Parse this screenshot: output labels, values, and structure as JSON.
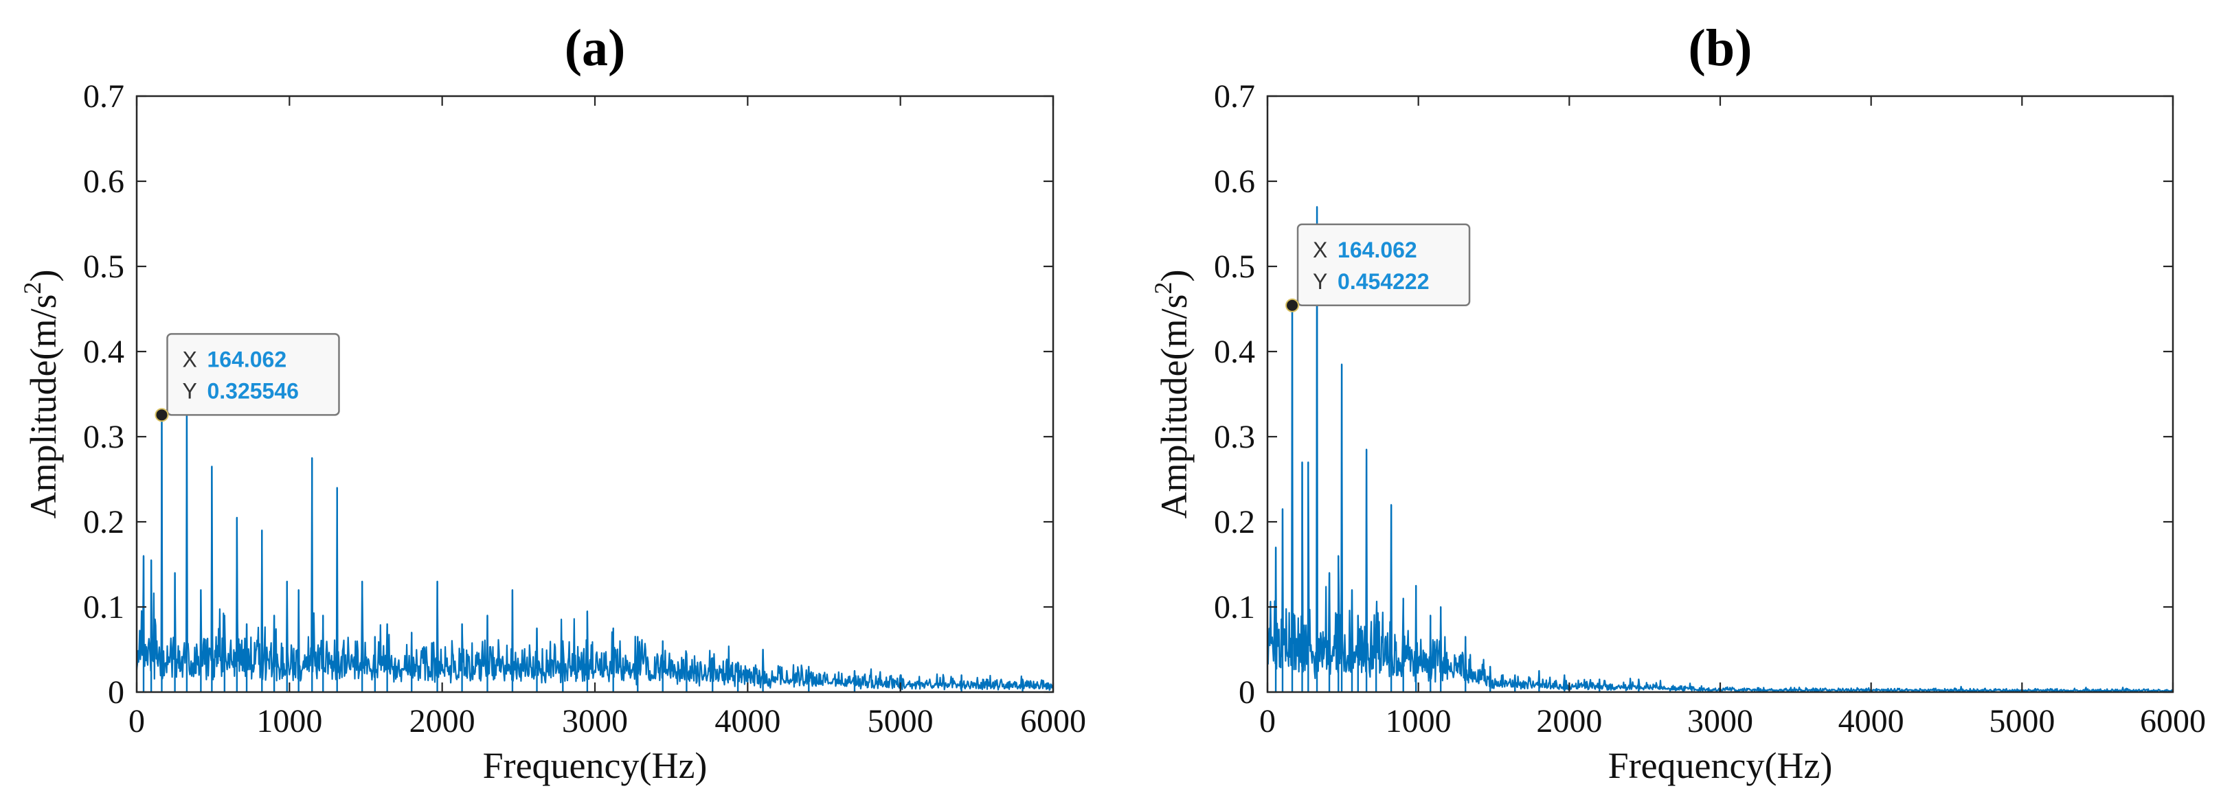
{
  "figure": {
    "panels": [
      "(a)",
      "(b)"
    ]
  },
  "colors": {
    "series": "#0072bd",
    "axis": "#262626",
    "datatip_value": "#1a8fd8",
    "datatip_label": "#333333",
    "datatip_border": "#7a7a7a",
    "datatip_bg": "#f8f8f8",
    "marker": "#1f1f1f"
  },
  "chart_data": [
    {
      "type": "line",
      "panel_label": "(a)",
      "title": "(a)",
      "xlabel": "Frequency(Hz)",
      "ylabel": "Amplitude(m/s2)",
      "ylabel_base": "Amplitude(m/s",
      "ylabel_sup": "2",
      "ylabel_close": ")",
      "xlim": [
        0,
        6000
      ],
      "ylim": [
        0,
        0.7
      ],
      "xticks": [
        0,
        1000,
        2000,
        3000,
        4000,
        5000,
        6000
      ],
      "xtick_labels": [
        "0",
        "1000",
        "2000",
        "3000",
        "4000",
        "5000",
        "6000"
      ],
      "yticks": [
        0,
        0.1,
        0.2,
        0.3,
        0.4,
        0.5,
        0.6,
        0.7
      ],
      "ytick_labels": [
        "0",
        "0.1",
        "0.2",
        "0.3",
        "0.4",
        "0.5",
        "0.6",
        "0.7"
      ],
      "grid": false,
      "series": [
        {
          "name": "spectrum",
          "noise_envelope": {
            "x": [
              0,
              1000,
              2000,
              3000,
              3500,
              4000,
              5000,
              6000
            ],
            "y": [
              0.05,
              0.04,
              0.035,
              0.035,
              0.03,
              0.02,
              0.012,
              0.008
            ]
          },
          "peaks": [
            {
              "x": 45,
              "y": 0.16
            },
            {
              "x": 95,
              "y": 0.155
            },
            {
              "x": 164.062,
              "y": 0.325546
            },
            {
              "x": 250,
              "y": 0.14
            },
            {
              "x": 328,
              "y": 0.33
            },
            {
              "x": 420,
              "y": 0.12
            },
            {
              "x": 492,
              "y": 0.265
            },
            {
              "x": 575,
              "y": 0.09
            },
            {
              "x": 656,
              "y": 0.205
            },
            {
              "x": 720,
              "y": 0.08
            },
            {
              "x": 820,
              "y": 0.19
            },
            {
              "x": 900,
              "y": 0.09
            },
            {
              "x": 984,
              "y": 0.13
            },
            {
              "x": 1060,
              "y": 0.12
            },
            {
              "x": 1148,
              "y": 0.275
            },
            {
              "x": 1220,
              "y": 0.09
            },
            {
              "x": 1312,
              "y": 0.24
            },
            {
              "x": 1476,
              "y": 0.13
            },
            {
              "x": 1560,
              "y": 0.065
            },
            {
              "x": 1640,
              "y": 0.08
            },
            {
              "x": 1800,
              "y": 0.07
            },
            {
              "x": 1968,
              "y": 0.13
            },
            {
              "x": 2130,
              "y": 0.08
            },
            {
              "x": 2296,
              "y": 0.09
            },
            {
              "x": 2460,
              "y": 0.12
            },
            {
              "x": 2620,
              "y": 0.075
            },
            {
              "x": 2790,
              "y": 0.06
            },
            {
              "x": 2950,
              "y": 0.095
            },
            {
              "x": 3120,
              "y": 0.075
            },
            {
              "x": 3280,
              "y": 0.065
            },
            {
              "x": 3444,
              "y": 0.06
            },
            {
              "x": 3600,
              "y": 0.045
            },
            {
              "x": 3770,
              "y": 0.04
            },
            {
              "x": 3936,
              "y": 0.035
            },
            {
              "x": 4100,
              "y": 0.05
            },
            {
              "x": 4400,
              "y": 0.03
            },
            {
              "x": 4700,
              "y": 0.025
            },
            {
              "x": 5000,
              "y": 0.02
            },
            {
              "x": 5400,
              "y": 0.02
            },
            {
              "x": 5800,
              "y": 0.015
            }
          ]
        }
      ],
      "datatip": {
        "x": 164.062,
        "y": 0.325546,
        "x_label": "X",
        "x_value": "164.062",
        "y_label": "Y",
        "y_value": "0.325546"
      }
    },
    {
      "type": "line",
      "panel_label": "(b)",
      "title": "(b)",
      "xlabel": "Frequency(Hz)",
      "ylabel": "Amplitude(m/s2)",
      "ylabel_base": "Amplitude(m/s",
      "ylabel_sup": "2",
      "ylabel_close": ")",
      "xlim": [
        0,
        6000
      ],
      "ylim": [
        0,
        0.7
      ],
      "xticks": [
        0,
        1000,
        2000,
        3000,
        4000,
        5000,
        6000
      ],
      "xtick_labels": [
        "0",
        "1000",
        "2000",
        "3000",
        "4000",
        "5000",
        "6000"
      ],
      "yticks": [
        0,
        0.1,
        0.2,
        0.3,
        0.4,
        0.5,
        0.6,
        0.7
      ],
      "ytick_labels": [
        "0",
        "0.1",
        "0.2",
        "0.3",
        "0.4",
        "0.5",
        "0.6",
        "0.7"
      ],
      "grid": false,
      "series": [
        {
          "name": "spectrum",
          "noise_envelope": {
            "x": [
              0,
              400,
              1000,
              1300,
              1500,
              2000,
              2500,
              3000,
              6000
            ],
            "y": [
              0.06,
              0.06,
              0.04,
              0.03,
              0.012,
              0.008,
              0.006,
              0.003,
              0.002
            ]
          },
          "peaks": [
            {
              "x": 55,
              "y": 0.17
            },
            {
              "x": 100,
              "y": 0.215
            },
            {
              "x": 164.062,
              "y": 0.454222
            },
            {
              "x": 230,
              "y": 0.27
            },
            {
              "x": 270,
              "y": 0.27
            },
            {
              "x": 328,
              "y": 0.57
            },
            {
              "x": 410,
              "y": 0.14
            },
            {
              "x": 470,
              "y": 0.16
            },
            {
              "x": 492,
              "y": 0.385
            },
            {
              "x": 560,
              "y": 0.12
            },
            {
              "x": 600,
              "y": 0.09
            },
            {
              "x": 656,
              "y": 0.285
            },
            {
              "x": 720,
              "y": 0.08
            },
            {
              "x": 820,
              "y": 0.22
            },
            {
              "x": 900,
              "y": 0.11
            },
            {
              "x": 984,
              "y": 0.125
            },
            {
              "x": 1080,
              "y": 0.09
            },
            {
              "x": 1148,
              "y": 0.1
            },
            {
              "x": 1312,
              "y": 0.065
            },
            {
              "x": 1476,
              "y": 0.03
            },
            {
              "x": 1640,
              "y": 0.02
            },
            {
              "x": 1800,
              "y": 0.025
            },
            {
              "x": 1968,
              "y": 0.02
            },
            {
              "x": 2200,
              "y": 0.015
            },
            {
              "x": 2460,
              "y": 0.015
            }
          ]
        }
      ],
      "datatip": {
        "x": 164.062,
        "y": 0.454222,
        "x_label": "X",
        "x_value": "164.062",
        "y_label": "Y",
        "y_value": "0.454222"
      }
    }
  ]
}
